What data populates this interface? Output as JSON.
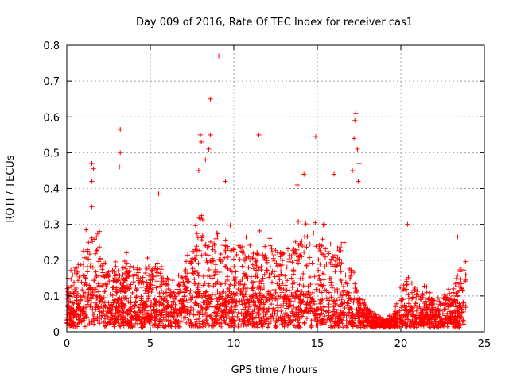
{
  "chart_data": {
    "type": "scatter",
    "title": "Day 009 of 2016, Rate Of TEC Index for receiver cas1",
    "xlabel": "GPS time / hours",
    "ylabel": "ROTI / TECUs",
    "xlim": [
      0,
      25
    ],
    "ylim": [
      0,
      0.8
    ],
    "xticks": [
      0,
      5,
      10,
      15,
      20,
      25
    ],
    "yticks": [
      0,
      0.1,
      0.2,
      0.3,
      0.4,
      0.5,
      0.6,
      0.7,
      0.8
    ],
    "grid": true,
    "marker": "plus",
    "color": "#ff0000",
    "profile": {
      "x": [
        0,
        0.5,
        1,
        1.5,
        2,
        2.5,
        3,
        3.5,
        4,
        4.5,
        5,
        5.5,
        6,
        6.5,
        7,
        7.5,
        8,
        8.5,
        9,
        9.5,
        10,
        10.5,
        11,
        11.5,
        12,
        12.5,
        13,
        13.5,
        14,
        14.5,
        15,
        15.5,
        16,
        16.5,
        17,
        17.5,
        18,
        18.5,
        19,
        19.5,
        20,
        20.5,
        21,
        21.5,
        22,
        22.5,
        23,
        23.5,
        23.9
      ],
      "median": [
        0.05,
        0.08,
        0.1,
        0.13,
        0.11,
        0.08,
        0.09,
        0.1,
        0.08,
        0.08,
        0.1,
        0.09,
        0.07,
        0.06,
        0.08,
        0.1,
        0.12,
        0.11,
        0.1,
        0.1,
        0.11,
        0.11,
        0.1,
        0.1,
        0.11,
        0.11,
        0.1,
        0.1,
        0.11,
        0.1,
        0.09,
        0.09,
        0.09,
        0.08,
        0.07,
        0.06,
        0.04,
        0.03,
        0.02,
        0.02,
        0.05,
        0.06,
        0.05,
        0.05,
        0.05,
        0.05,
        0.05,
        0.07,
        0.08
      ],
      "upper": [
        0.16,
        0.22,
        0.28,
        0.35,
        0.3,
        0.22,
        0.21,
        0.22,
        0.23,
        0.22,
        0.22,
        0.23,
        0.16,
        0.14,
        0.2,
        0.28,
        0.35,
        0.33,
        0.3,
        0.3,
        0.32,
        0.3,
        0.28,
        0.28,
        0.3,
        0.3,
        0.28,
        0.3,
        0.33,
        0.34,
        0.32,
        0.3,
        0.33,
        0.28,
        0.22,
        0.13,
        0.08,
        0.06,
        0.04,
        0.05,
        0.16,
        0.2,
        0.15,
        0.14,
        0.12,
        0.11,
        0.14,
        0.22,
        0.22
      ]
    },
    "outliers": [
      {
        "x": 9.1,
        "y": 0.77
      },
      {
        "x": 8.6,
        "y": 0.65
      },
      {
        "x": 3.2,
        "y": 0.565
      },
      {
        "x": 3.2,
        "y": 0.5
      },
      {
        "x": 3.15,
        "y": 0.46
      },
      {
        "x": 8.0,
        "y": 0.55
      },
      {
        "x": 8.05,
        "y": 0.53
      },
      {
        "x": 8.5,
        "y": 0.51
      },
      {
        "x": 8.6,
        "y": 0.55
      },
      {
        "x": 11.5,
        "y": 0.55
      },
      {
        "x": 14.9,
        "y": 0.545
      },
      {
        "x": 17.3,
        "y": 0.61
      },
      {
        "x": 17.25,
        "y": 0.59
      },
      {
        "x": 17.2,
        "y": 0.54
      },
      {
        "x": 17.4,
        "y": 0.51
      },
      {
        "x": 17.5,
        "y": 0.47
      },
      {
        "x": 17.45,
        "y": 0.42
      },
      {
        "x": 17.1,
        "y": 0.45
      },
      {
        "x": 1.5,
        "y": 0.47
      },
      {
        "x": 1.6,
        "y": 0.455
      },
      {
        "x": 1.5,
        "y": 0.42
      },
      {
        "x": 5.5,
        "y": 0.385
      },
      {
        "x": 7.9,
        "y": 0.45
      },
      {
        "x": 8.3,
        "y": 0.48
      },
      {
        "x": 9.5,
        "y": 0.42
      },
      {
        "x": 13.8,
        "y": 0.41
      },
      {
        "x": 14.2,
        "y": 0.44
      },
      {
        "x": 16.0,
        "y": 0.44
      },
      {
        "x": 20.4,
        "y": 0.3
      },
      {
        "x": 23.4,
        "y": 0.265
      }
    ]
  }
}
